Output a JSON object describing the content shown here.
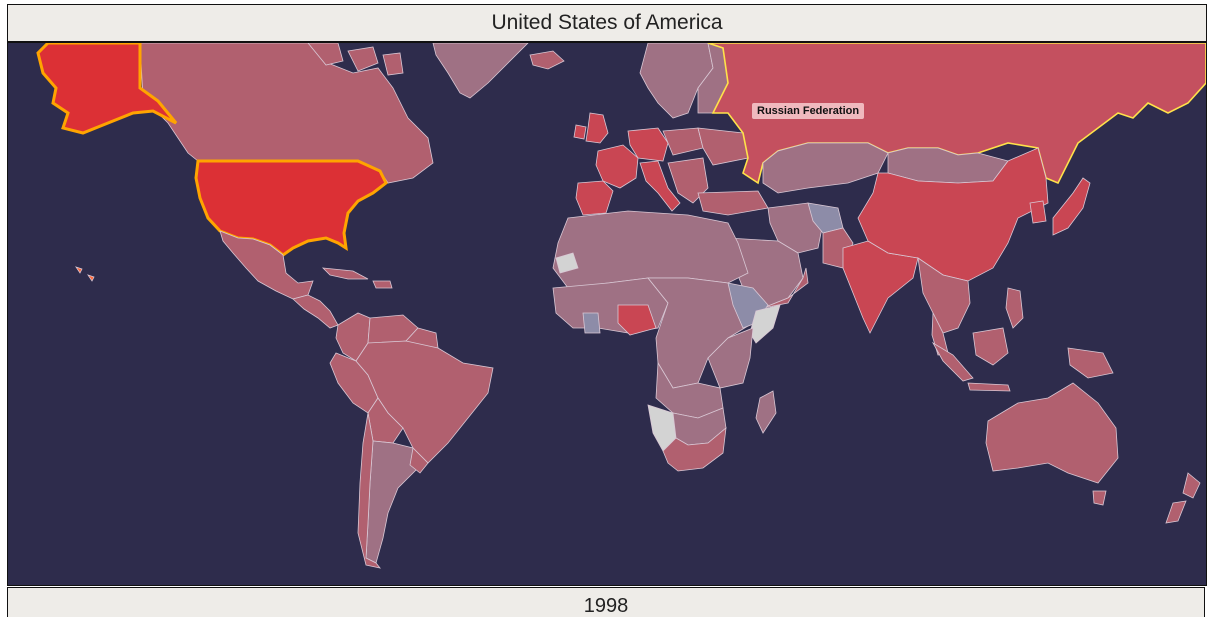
{
  "header": {
    "title": "United States of America"
  },
  "footer": {
    "year": "1998"
  },
  "tooltip": {
    "label": "Russian Federation"
  },
  "map": {
    "background": "#2e2c4c",
    "primary_highlight": {
      "name": "United States of America",
      "fill": "#dc3035",
      "outline": "#ffa400"
    },
    "secondary_highlight": {
      "name": "Russian Federation",
      "fill": "#c4505f",
      "outline": "#ffe24a"
    },
    "high_value_fill": "#c94653",
    "default_fill": "#b1606f",
    "mid_fill": "#9f7184",
    "low_fill": "#8d8ca8",
    "no_data_fill": "#d3d3d3"
  }
}
